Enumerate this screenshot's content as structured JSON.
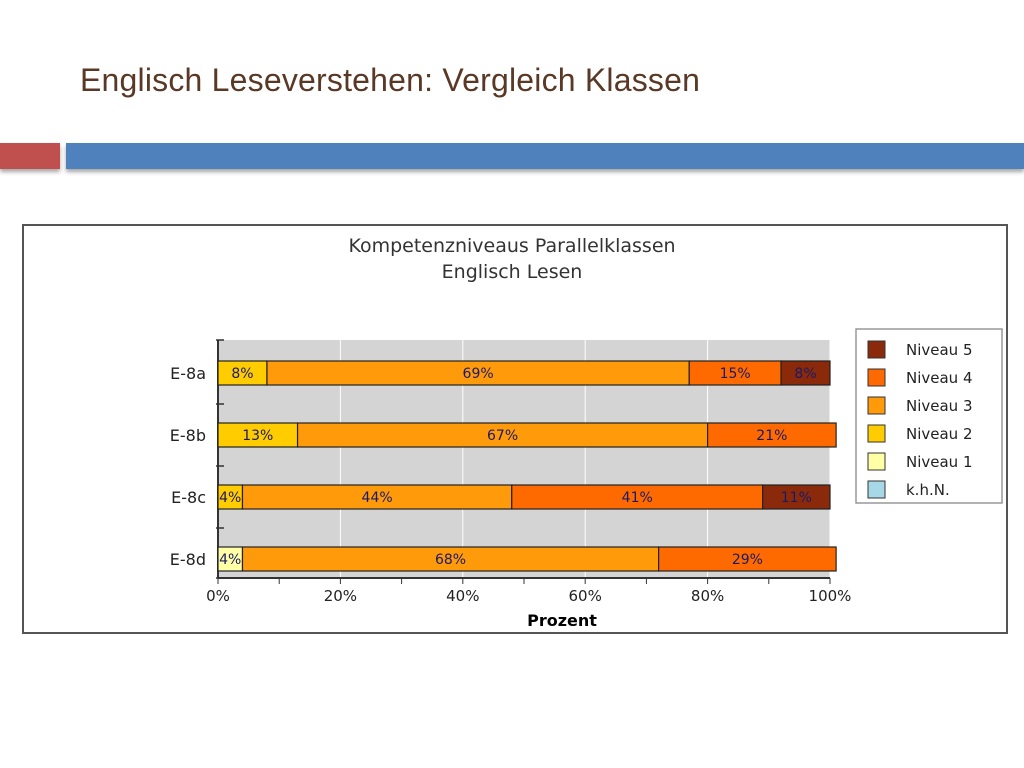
{
  "slide": {
    "title": "Englisch Leseverstehen: Vergleich Klassen",
    "colors": {
      "title": "#5a3826",
      "accent_red": "#c0504d",
      "accent_blue": "#4f81bd"
    }
  },
  "chart_data": {
    "type": "bar",
    "orientation": "horizontal",
    "stacked": true,
    "title": "Kompetenzniveaus Parallelklassen",
    "subtitle": "Englisch Lesen",
    "xlabel": "Prozent",
    "ylabel": "",
    "xlim": [
      0,
      100
    ],
    "xticks": [
      "0%",
      "20%",
      "40%",
      "60%",
      "80%",
      "100%"
    ],
    "categories": [
      "E-8a",
      "E-8b",
      "E-8c",
      "E-8d"
    ],
    "series": [
      {
        "name": "k.h.N.",
        "color": "#a6d8e6",
        "values": [
          0,
          0,
          0,
          0
        ]
      },
      {
        "name": "Niveau 1",
        "color": "#ffffa6",
        "values": [
          0,
          0,
          0,
          4
        ]
      },
      {
        "name": "Niveau 2",
        "color": "#ffcc00",
        "values": [
          8,
          13,
          4,
          0
        ]
      },
      {
        "name": "Niveau 3",
        "color": "#ff9a0a",
        "values": [
          69,
          67,
          44,
          68
        ]
      },
      {
        "name": "Niveau 4",
        "color": "#ff6a00",
        "values": [
          15,
          21,
          41,
          29
        ]
      },
      {
        "name": "Niveau 5",
        "color": "#8a2a0a",
        "values": [
          8,
          0,
          11,
          0
        ]
      }
    ],
    "segment_labels": [
      [
        "8%",
        "69%",
        "15%",
        "8%"
      ],
      [
        "13%",
        "67%",
        "21%"
      ],
      [
        "4%",
        "44%",
        "41%",
        "11%"
      ],
      [
        "4%",
        "68%",
        "29%"
      ]
    ],
    "legend": {
      "placement": "right",
      "entries": [
        "Niveau 5",
        "Niveau 4",
        "Niveau 3",
        "Niveau 2",
        "Niveau 1",
        "k.h.N."
      ]
    },
    "grid": true,
    "plot_background": "#d4d4d4"
  }
}
